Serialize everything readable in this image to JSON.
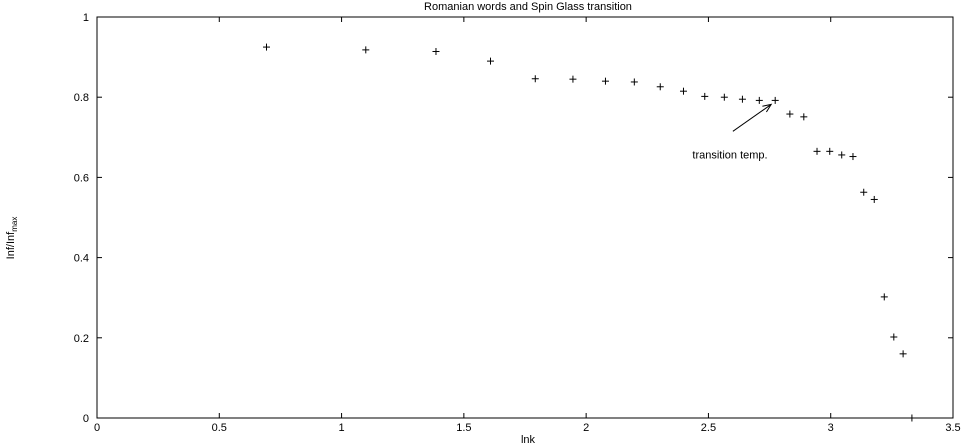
{
  "chart_data": {
    "type": "scatter",
    "title": "Romanian words and Spin Glass transition",
    "xlabel": "lnk",
    "ylabel": "Inf/Inf",
    "ylabel_sub": "max",
    "xlim": [
      0,
      3.5
    ],
    "ylim": [
      0,
      1
    ],
    "xticks": [
      0,
      0.5,
      1,
      1.5,
      2,
      2.5,
      3,
      3.5
    ],
    "xtick_labels": [
      "0",
      "0.5",
      "1",
      "1.5",
      "2",
      "2.5",
      "3",
      "3.5"
    ],
    "yticks": [
      0,
      0.2,
      0.4,
      0.6,
      0.8,
      1
    ],
    "ytick_labels": [
      "0",
      "0.2",
      "0.4",
      "0.6",
      "0.8",
      "1"
    ],
    "grid": false,
    "marker": "+",
    "points": [
      {
        "x": 0.693,
        "y": 0.925
      },
      {
        "x": 1.099,
        "y": 0.918
      },
      {
        "x": 1.386,
        "y": 0.914
      },
      {
        "x": 1.609,
        "y": 0.89
      },
      {
        "x": 1.792,
        "y": 0.846
      },
      {
        "x": 1.946,
        "y": 0.845
      },
      {
        "x": 2.079,
        "y": 0.84
      },
      {
        "x": 2.197,
        "y": 0.838
      },
      {
        "x": 2.303,
        "y": 0.826
      },
      {
        "x": 2.398,
        "y": 0.815
      },
      {
        "x": 2.485,
        "y": 0.802
      },
      {
        "x": 2.565,
        "y": 0.8
      },
      {
        "x": 2.639,
        "y": 0.795
      },
      {
        "x": 2.708,
        "y": 0.792
      },
      {
        "x": 2.773,
        "y": 0.792
      },
      {
        "x": 2.833,
        "y": 0.758
      },
      {
        "x": 2.89,
        "y": 0.751
      },
      {
        "x": 2.944,
        "y": 0.665
      },
      {
        "x": 2.996,
        "y": 0.665
      },
      {
        "x": 3.045,
        "y": 0.656
      },
      {
        "x": 3.091,
        "y": 0.652
      },
      {
        "x": 3.135,
        "y": 0.563
      },
      {
        "x": 3.178,
        "y": 0.545
      },
      {
        "x": 3.219,
        "y": 0.302
      },
      {
        "x": 3.258,
        "y": 0.202
      },
      {
        "x": 3.296,
        "y": 0.16
      },
      {
        "x": 3.332,
        "y": 0.0
      }
    ],
    "annotations": [
      {
        "text": "transition temp.",
        "arrow_to": {
          "x": 2.773,
          "y": 0.792
        },
        "arrow_from": {
          "x": 2.6,
          "y": 0.715
        }
      }
    ]
  }
}
